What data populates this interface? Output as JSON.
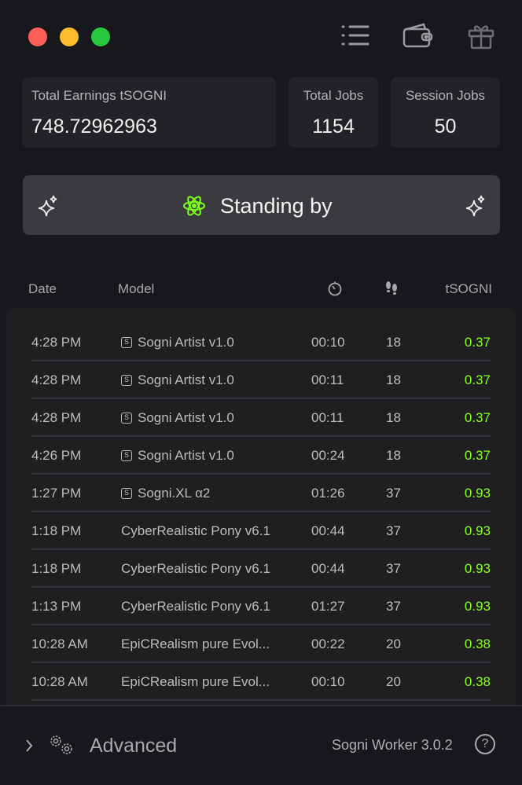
{
  "window_controls": {
    "close_color": "#fe5f57",
    "minimize_color": "#febc2e",
    "zoom_color": "#28c840"
  },
  "toolbar": {
    "icons": [
      "list-icon",
      "wallet-icon",
      "gift-icon"
    ]
  },
  "stats": {
    "total_earnings": {
      "label": "Total Earnings tSOGNI",
      "value": "748.72962963"
    },
    "total_jobs": {
      "label": "Total Jobs",
      "value": "1154"
    },
    "session_jobs": {
      "label": "Session Jobs",
      "value": "50"
    }
  },
  "status": {
    "label": "Standing by",
    "icon": "atom-icon",
    "icon_color": "#7cff1a"
  },
  "table": {
    "headers": {
      "date": "Date",
      "model": "Model",
      "duration_icon": "timer-icon",
      "steps_icon": "footsteps-icon",
      "amount": "tSOGNI"
    },
    "rows": [
      {
        "date": "4:28 PM",
        "badge": "S",
        "model": "Sogni Artist v1.0",
        "time": "00:10",
        "steps": "18",
        "amount": "0.37"
      },
      {
        "date": "4:28 PM",
        "badge": "S",
        "model": "Sogni Artist v1.0",
        "time": "00:11",
        "steps": "18",
        "amount": "0.37"
      },
      {
        "date": "4:28 PM",
        "badge": "S",
        "model": "Sogni Artist v1.0",
        "time": "00:11",
        "steps": "18",
        "amount": "0.37"
      },
      {
        "date": "4:26 PM",
        "badge": "S",
        "model": "Sogni Artist v1.0",
        "time": "00:24",
        "steps": "18",
        "amount": "0.37"
      },
      {
        "date": "1:27 PM",
        "badge": "S",
        "model": "Sogni.XL α2",
        "time": "01:26",
        "steps": "37",
        "amount": "0.93"
      },
      {
        "date": "1:18 PM",
        "badge": "",
        "model": "CyberRealistic Pony v6.1",
        "time": "00:44",
        "steps": "37",
        "amount": "0.93"
      },
      {
        "date": "1:18 PM",
        "badge": "",
        "model": "CyberRealistic Pony v6.1",
        "time": "00:44",
        "steps": "37",
        "amount": "0.93"
      },
      {
        "date": "1:13 PM",
        "badge": "",
        "model": "CyberRealistic Pony v6.1",
        "time": "01:27",
        "steps": "37",
        "amount": "0.93"
      },
      {
        "date": "10:28 AM",
        "badge": "",
        "model": "EpiCRealism pure Evol...",
        "time": "00:22",
        "steps": "20",
        "amount": "0.38"
      },
      {
        "date": "10:28 AM",
        "badge": "",
        "model": "EpiCRealism pure Evol...",
        "time": "00:10",
        "steps": "20",
        "amount": "0.38"
      }
    ]
  },
  "footer": {
    "advanced_label": "Advanced",
    "version": "Sogni Worker 3.0.2",
    "help": "?"
  }
}
